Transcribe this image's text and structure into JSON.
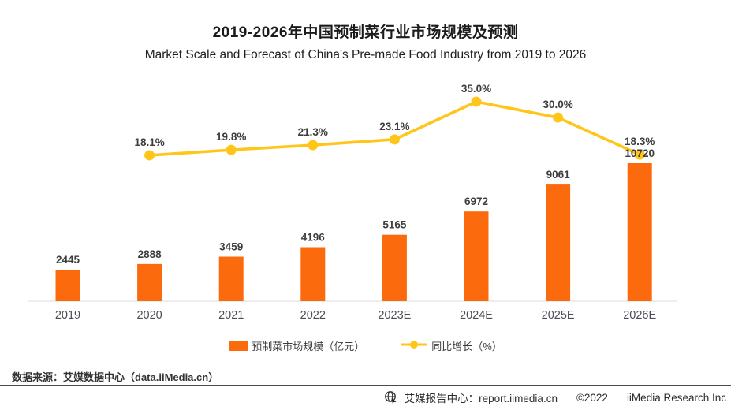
{
  "header": {
    "title": "2019-2026年中国预制菜行业市场规模及预测",
    "subtitle": "Market Scale and Forecast of China's Pre-made Food Industry from 2019 to 2026"
  },
  "chart_data": {
    "type": "bar+line",
    "categories": [
      "2019",
      "2020",
      "2021",
      "2022",
      "2023E",
      "2024E",
      "2025E",
      "2026E"
    ],
    "series": [
      {
        "name": "预制菜市场规模（亿元）",
        "type": "bar",
        "values": [
          2445,
          2888,
          3459,
          4196,
          5165,
          6972,
          9061,
          10720
        ],
        "labels": [
          "2445",
          "2888",
          "3459",
          "4196",
          "5165",
          "6972",
          "9061",
          "10720"
        ],
        "color": "#FB6A0D"
      },
      {
        "name": "同比增长（%）",
        "type": "line",
        "values": [
          null,
          18.1,
          19.8,
          21.3,
          23.1,
          35.0,
          30.0,
          18.3
        ],
        "labels": [
          "",
          "18.1%",
          "19.8%",
          "21.3%",
          "23.1%",
          "35.0%",
          "30.0%",
          "18.3%"
        ],
        "color": "#FFC619"
      }
    ],
    "bar_ylim": [
      0,
      11500
    ],
    "line_ylim": [
      0,
      45
    ],
    "grid": false,
    "legend_position": "bottom",
    "axis_line_color": "#E8E8E8",
    "value_label_color": "#3D3D3D",
    "category_label_color": "#4A4D55"
  },
  "footer": {
    "source": "数据来源：艾媒数据中心（data.iiMedia.cn）"
  },
  "bottom_bar": {
    "globe_icon": "globe-cursor-icon",
    "site_label": "艾媒报告中心：report.iimedia.cn",
    "copyright": "©2022",
    "company": "iiMedia Research Inc"
  }
}
